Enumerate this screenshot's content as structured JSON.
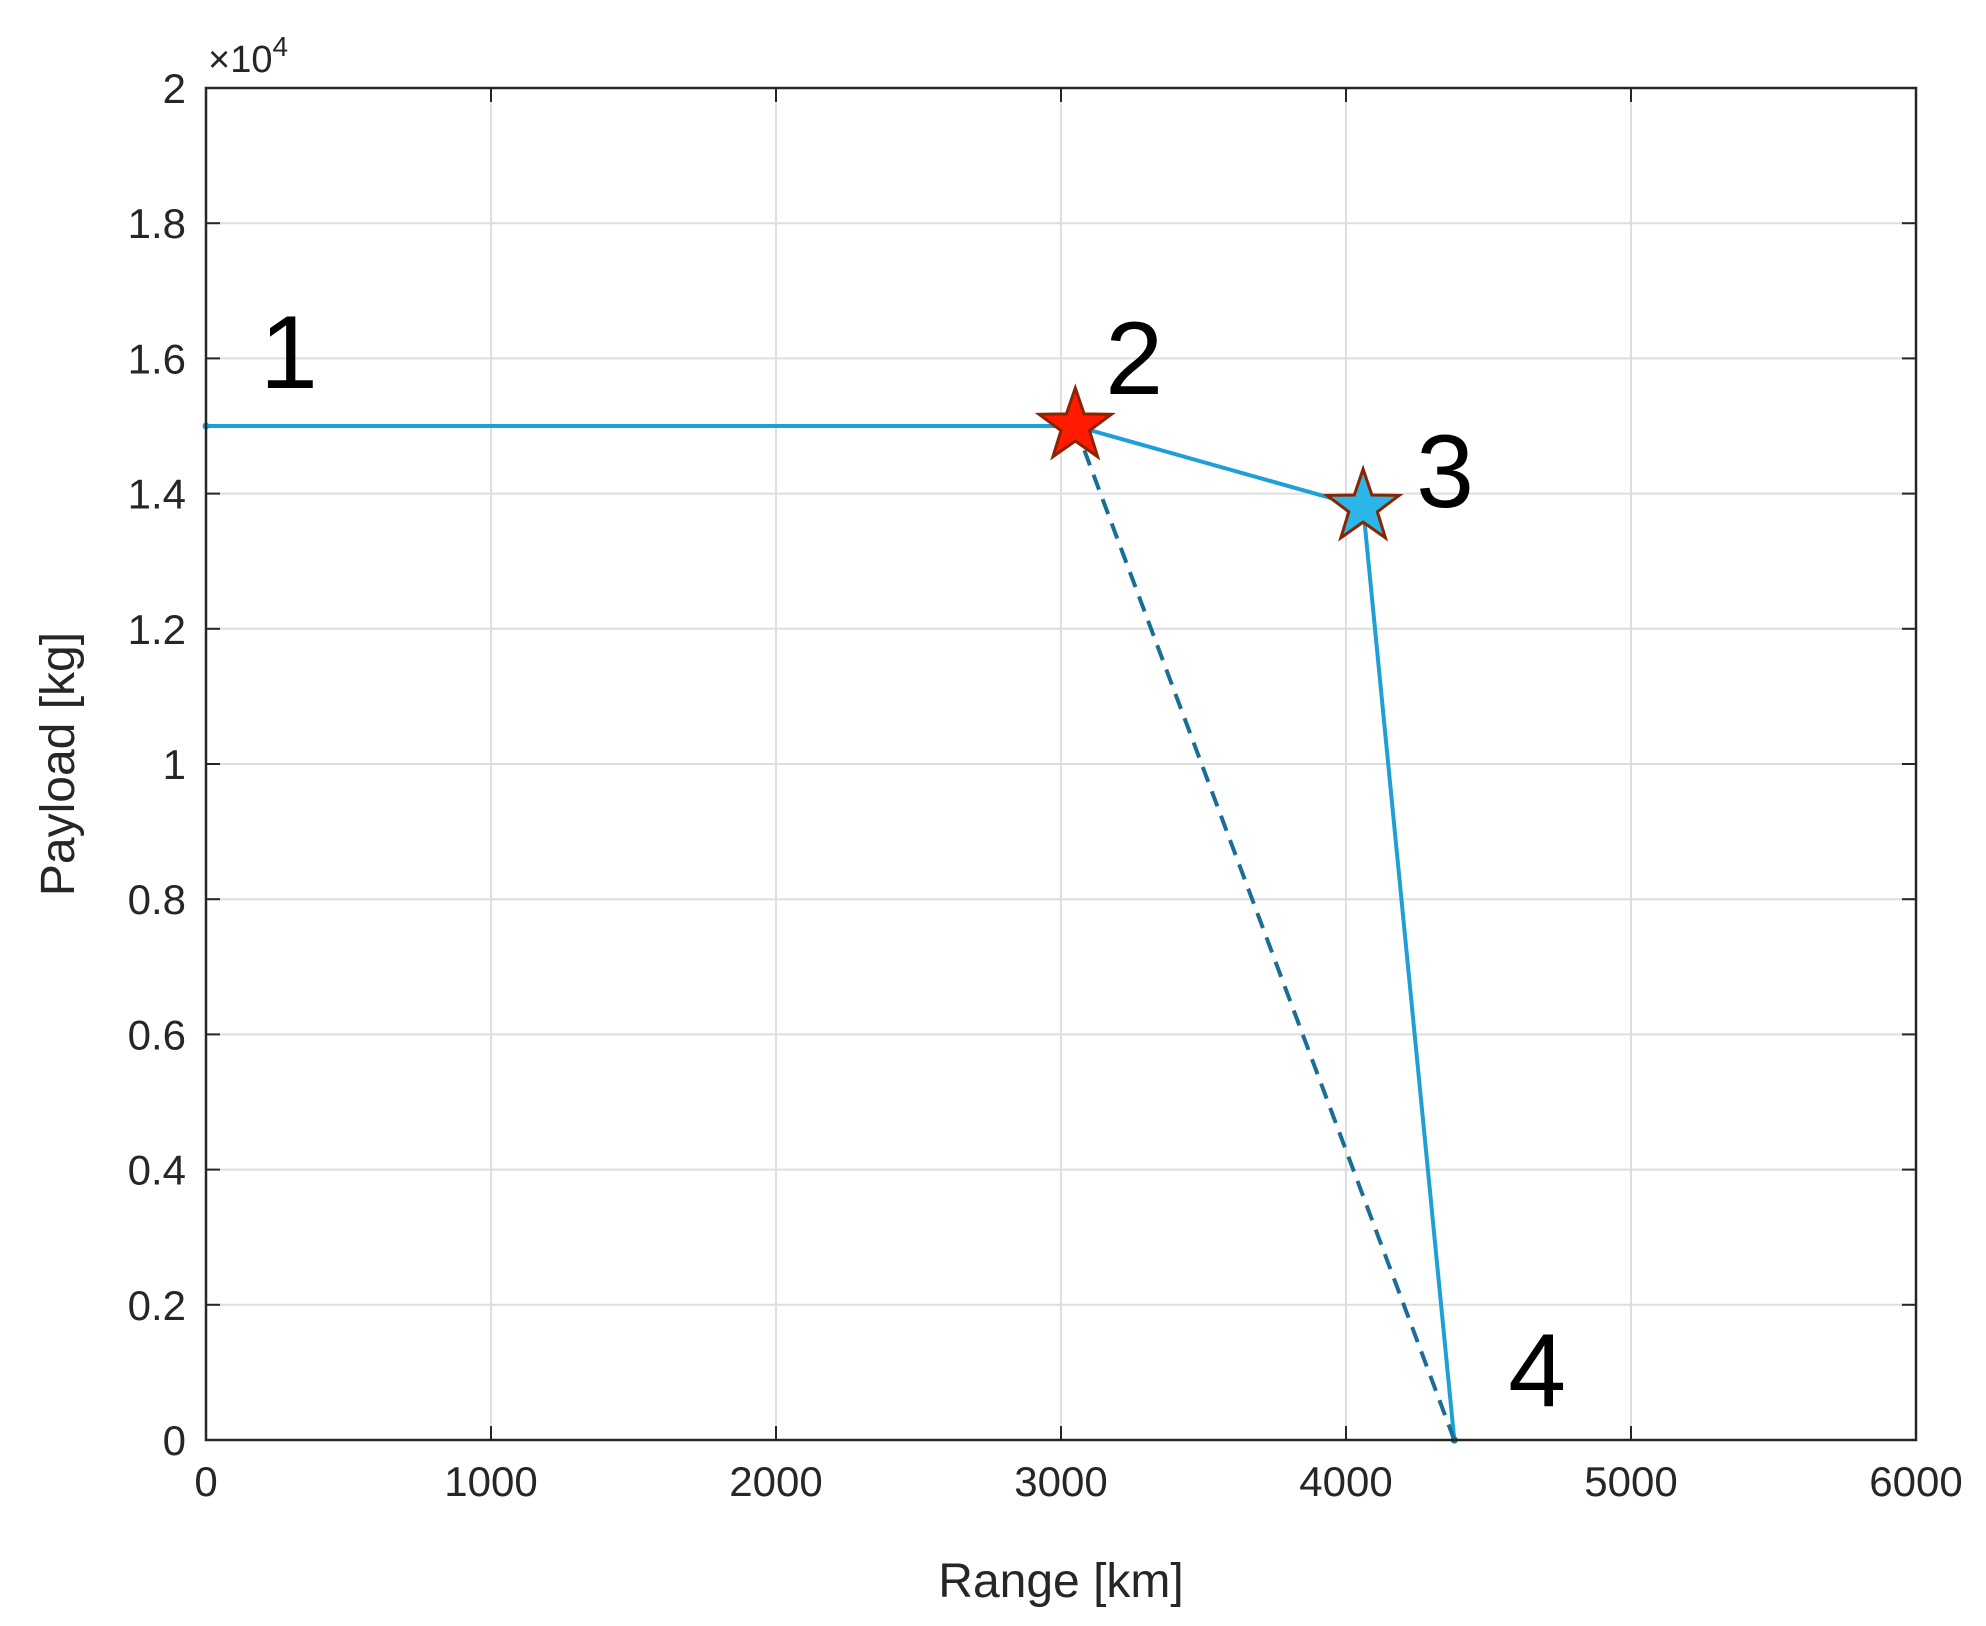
{
  "chart_data": {
    "type": "line",
    "xlabel": "Range [km]",
    "ylabel": "Payload [kg]",
    "y_exponent_label": {
      "base": "×10",
      "power": "4"
    },
    "xlim": [
      0,
      6000
    ],
    "ylim": [
      0,
      20000
    ],
    "x_ticks": [
      0,
      1000,
      2000,
      3000,
      4000,
      5000,
      6000
    ],
    "x_tick_labels": [
      "0",
      "1000",
      "2000",
      "3000",
      "4000",
      "5000",
      "6000"
    ],
    "y_ticks": [
      0,
      2000,
      4000,
      6000,
      8000,
      10000,
      12000,
      14000,
      16000,
      18000,
      20000
    ],
    "y_tick_labels": [
      "0",
      "0.2",
      "0.4",
      "0.6",
      "0.8",
      "1",
      "1.2",
      "1.4",
      "1.6",
      "1.8",
      "2"
    ],
    "grid": true,
    "series": [
      {
        "style": "solid",
        "color": "#1f9fd5",
        "x": [
          0,
          3050,
          4060,
          4380
        ],
        "y": [
          15000,
          15000,
          13800,
          0
        ]
      },
      {
        "style": "dashed",
        "color": "#1a6e96",
        "x": [
          3050,
          4380
        ],
        "y": [
          15000,
          0
        ]
      }
    ],
    "markers": [
      {
        "shape": "star",
        "x": 3050,
        "y": 15000,
        "fill": "#ff1a00",
        "stroke": "#8b2500"
      },
      {
        "shape": "star",
        "x": 4060,
        "y": 13800,
        "fill": "#2bb5e8",
        "stroke": "#8b2500"
      }
    ],
    "point_labels": [
      {
        "text": "1",
        "x": 0,
        "y": 15000
      },
      {
        "text": "2",
        "x": 3050,
        "y": 15000
      },
      {
        "text": "3",
        "x": 4060,
        "y": 13800
      },
      {
        "text": "4",
        "x": 4380,
        "y": 0
      }
    ]
  }
}
